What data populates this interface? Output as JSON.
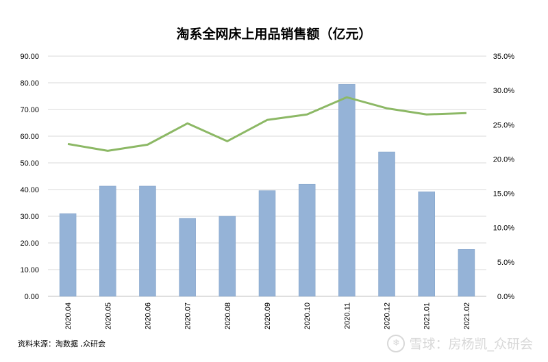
{
  "chart_data": {
    "type": "bar",
    "title": "淘系全网床上用品销售额（亿元）",
    "categories": [
      "2020.04",
      "2020.05",
      "2020.06",
      "2020.07",
      "2020.08",
      "2020.09",
      "2020.10",
      "2020.11",
      "2020.12",
      "2021.01",
      "2021.02"
    ],
    "series": [
      {
        "type": "bar",
        "axis": "left",
        "color": "#95b3d7",
        "values": [
          31.0,
          41.3,
          41.3,
          29.2,
          30.0,
          39.6,
          42.0,
          79.4,
          54.1,
          39.2,
          17.6
        ]
      },
      {
        "type": "line",
        "axis": "right",
        "color": "#8cb865",
        "values": [
          0.222,
          0.212,
          0.221,
          0.252,
          0.226,
          0.257,
          0.265,
          0.29,
          0.274,
          0.265,
          0.267
        ]
      }
    ],
    "y_left": {
      "min": 0,
      "max": 90,
      "step": 10,
      "tick_labels": [
        "0.00",
        "10.00",
        "20.00",
        "30.00",
        "40.00",
        "50.00",
        "60.00",
        "70.00",
        "80.00",
        "90.00"
      ]
    },
    "y_right": {
      "min": 0,
      "max": 0.35,
      "step": 0.05,
      "tick_labels": [
        "0.0%",
        "5.0%",
        "10.0%",
        "15.0%",
        "20.0%",
        "25.0%",
        "30.0%",
        "35.0%"
      ]
    },
    "grid": true,
    "legend": "none"
  },
  "footer": {
    "source": "资料来源：淘数据 ,众研会",
    "watermark": "雪球：房杨凯_众研会"
  }
}
